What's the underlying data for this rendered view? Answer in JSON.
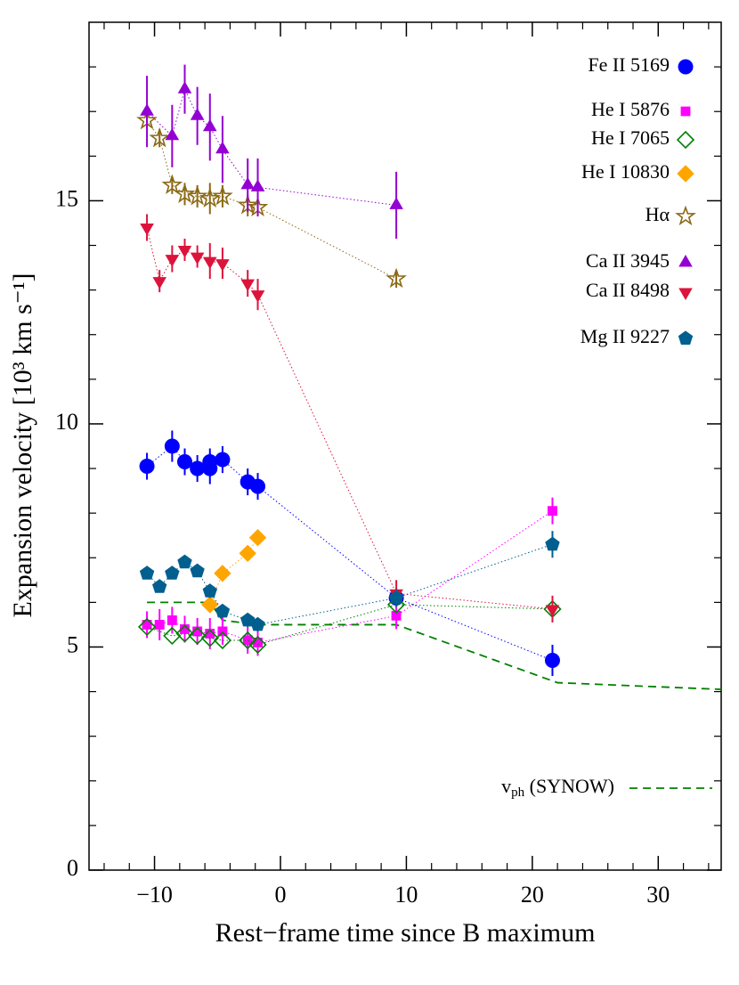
{
  "chart_data": {
    "type": "scatter",
    "xlabel": "Rest−frame time since B maximum",
    "ylabel": "Expansion velocity [10³ km s⁻¹]",
    "xlim": [
      -15.2,
      35
    ],
    "ylim": [
      0,
      19
    ],
    "xticks": [
      {
        "value": -10,
        "label": "−10"
      },
      0,
      10,
      20,
      30
    ],
    "yticks": [
      0,
      5,
      10,
      15
    ],
    "xminorticks": [
      -14,
      -12,
      -8,
      -6,
      -4,
      -2,
      2,
      4,
      6,
      8,
      12,
      14,
      16,
      18,
      22,
      24,
      26,
      28,
      32,
      34
    ],
    "yminorticks": [
      1,
      2,
      3,
      4,
      6,
      7,
      8,
      9,
      11,
      12,
      13,
      14,
      16,
      17,
      18
    ],
    "series": [
      {
        "name": "Fe II 5169",
        "color": "#0000ff",
        "marker": "circle",
        "filled": true,
        "x": [
          -10.6,
          -8.6,
          -7.6,
          -6.6,
          -5.6,
          -5.6,
          -4.6,
          -2.6,
          -1.8,
          9.2,
          21.6
        ],
        "values": [
          9.05,
          9.5,
          9.15,
          9.0,
          9.15,
          9.0,
          9.2,
          8.7,
          8.6,
          6.1,
          4.7
        ],
        "errors": [
          0.3,
          0.35,
          0.3,
          0.3,
          0.3,
          0.35,
          0.3,
          0.3,
          0.3,
          0.2,
          0.35
        ]
      },
      {
        "name": "He I 5876",
        "color": "#ff00ff",
        "marker": "square",
        "filled": true,
        "x": [
          -10.6,
          -9.6,
          -8.6,
          -7.6,
          -6.6,
          -5.6,
          -4.6,
          -2.6,
          -1.8,
          9.2,
          21.6
        ],
        "values": [
          5.5,
          5.5,
          5.6,
          5.4,
          5.35,
          5.3,
          5.35,
          5.15,
          5.1,
          5.7,
          8.05
        ],
        "errors": [
          0.3,
          0.35,
          0.3,
          0.3,
          0.3,
          0.35,
          0.3,
          0.3,
          0.3,
          0.3,
          0.3
        ]
      },
      {
        "name": "He I 7065",
        "color": "#008000",
        "marker": "diamond",
        "filled": false,
        "x": [
          -10.6,
          -8.6,
          -7.6,
          -6.6,
          -5.6,
          -4.6,
          -2.6,
          -1.8,
          9.2,
          21.6
        ],
        "values": [
          5.45,
          5.25,
          5.3,
          5.25,
          5.2,
          5.15,
          5.15,
          5.05,
          5.95,
          5.85
        ]
      },
      {
        "name": "He I 10830",
        "color": "#ffa500",
        "marker": "diamond",
        "filled": true,
        "x": [
          -5.6,
          -4.6,
          -2.6,
          -1.8
        ],
        "values": [
          5.95,
          6.65,
          7.1,
          7.45
        ]
      },
      {
        "name": "Hα",
        "color": "#8b6914",
        "marker": "star",
        "filled": false,
        "x": [
          -10.6,
          -9.6,
          -8.6,
          -7.6,
          -6.6,
          -5.6,
          -4.6,
          -2.6,
          -1.8,
          9.2
        ],
        "values": [
          16.8,
          16.4,
          15.35,
          15.15,
          15.1,
          15.05,
          15.1,
          14.9,
          14.85,
          13.25
        ],
        "errors": [
          0.2,
          0.2,
          0.2,
          0.25,
          0.25,
          0.35,
          0.25,
          0.25,
          0.2,
          0.2
        ]
      },
      {
        "name": "Ca II 3945",
        "color": "#9400d3",
        "marker": "triangle-up",
        "filled": true,
        "x": [
          -10.6,
          -8.6,
          -7.6,
          -6.6,
          -5.6,
          -4.6,
          -2.6,
          -1.8,
          9.2
        ],
        "values": [
          17.0,
          16.45,
          17.5,
          16.9,
          16.65,
          16.15,
          15.35,
          15.3,
          14.9
        ],
        "errors": [
          0.8,
          0.7,
          0.55,
          0.65,
          0.75,
          0.75,
          0.6,
          0.65,
          0.75
        ]
      },
      {
        "name": "Ca II 8498",
        "color": "#dc143c",
        "marker": "triangle-down",
        "filled": true,
        "x": [
          -10.6,
          -9.6,
          -8.6,
          -7.6,
          -6.6,
          -5.6,
          -4.6,
          -2.6,
          -1.8,
          9.2,
          21.6
        ],
        "values": [
          14.4,
          13.2,
          13.7,
          13.9,
          13.75,
          13.65,
          13.6,
          13.15,
          12.9,
          6.2,
          5.85
        ],
        "errors": [
          0.3,
          0.25,
          0.3,
          0.25,
          0.25,
          0.4,
          0.35,
          0.3,
          0.35,
          0.3,
          0.3
        ]
      },
      {
        "name": "Mg II 9227",
        "color": "#005f8f",
        "marker": "pentagon",
        "filled": true,
        "x": [
          -10.6,
          -9.6,
          -8.6,
          -7.6,
          -6.6,
          -5.6,
          -4.6,
          -2.6,
          -1.8,
          9.2,
          21.6
        ],
        "values": [
          6.65,
          6.35,
          6.65,
          6.9,
          6.7,
          6.25,
          5.8,
          5.6,
          5.5,
          6.1,
          7.3
        ],
        "errors": [
          0.1,
          0.1,
          0.1,
          0.1,
          0.1,
          0.15,
          0.15,
          0.15,
          0.15,
          0.2,
          0.3
        ]
      }
    ],
    "model": {
      "label_main": "v",
      "label_sub": "ph",
      "label_rest": " (SYNOW)",
      "color": "#008000",
      "x": [
        -10.6,
        -5.6,
        -4.6,
        -1.8,
        9.2,
        22,
        35
      ],
      "values": [
        6.0,
        6.0,
        5.6,
        5.5,
        5.5,
        4.2,
        4.05
      ]
    }
  }
}
